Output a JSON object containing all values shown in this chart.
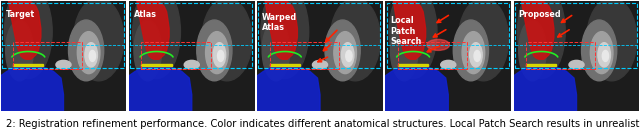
{
  "figure_width": 6.4,
  "figure_height": 1.34,
  "dpi": 100,
  "background_color": "#ffffff",
  "caption_prefix": "2: ",
  "caption_text": "Registration refinement performance. Color indicates different anatomical structures. Local Patch Search results in unrealistic im",
  "caption_fontsize": 7.2,
  "panel_labels": [
    "Target",
    "Atlas",
    "Warped\nAtlas",
    "Local\nPatch\nSearch",
    "Proposed"
  ],
  "num_panels": 5
}
